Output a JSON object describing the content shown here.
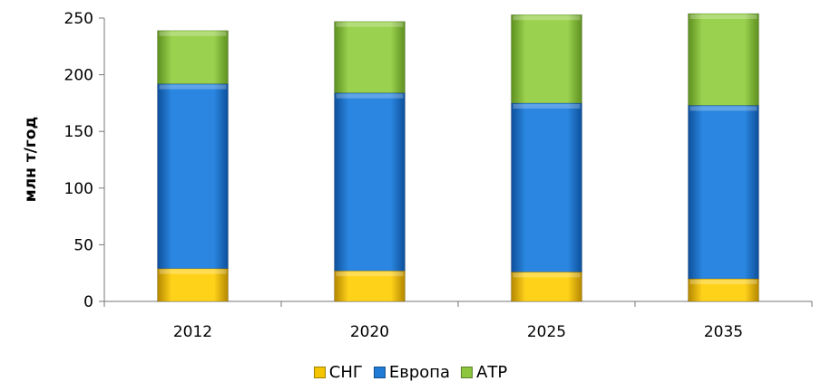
{
  "chart_data": {
    "type": "bar",
    "stacked": true,
    "title": "",
    "xlabel": "",
    "ylabel": "млн т/год",
    "categories": [
      "2012",
      "2020",
      "2025",
      "2035"
    ],
    "series": [
      {
        "name": "СНГ",
        "color": "#f5c400",
        "values": [
          29,
          27,
          26,
          20
        ]
      },
      {
        "name": "Европа",
        "color": "#1f7bd6",
        "values": [
          163,
          157,
          149,
          153
        ]
      },
      {
        "name": "АТР",
        "color": "#8cc63f",
        "values": [
          47,
          63,
          78,
          81
        ]
      }
    ],
    "ylim": [
      0,
      250
    ],
    "yticks": [
      "0",
      "50",
      "100",
      "150",
      "200",
      "250"
    ],
    "grid": false,
    "legend_position": "bottom"
  }
}
